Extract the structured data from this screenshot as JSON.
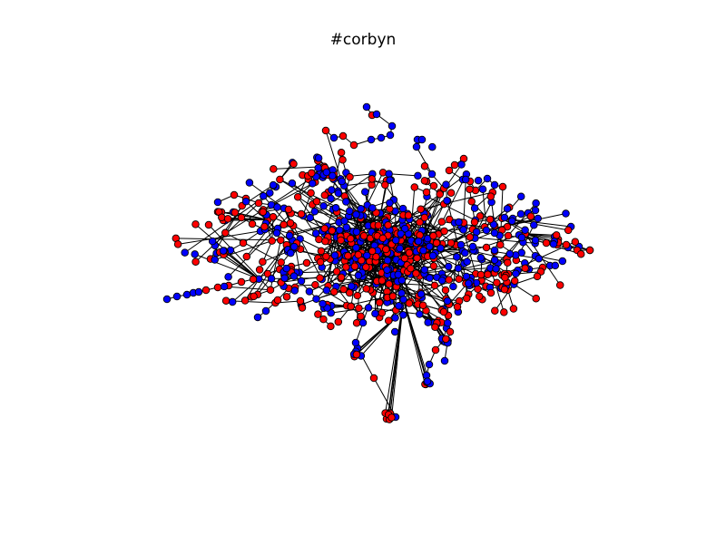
{
  "figure": {
    "title": "#corbyn"
  },
  "graph": {
    "node_colors": {
      "red": "#ff0000",
      "blue": "#0000ff"
    },
    "edge_color": "#000000",
    "node_outline_color": "#000000",
    "background": "#ffffff"
  }
}
